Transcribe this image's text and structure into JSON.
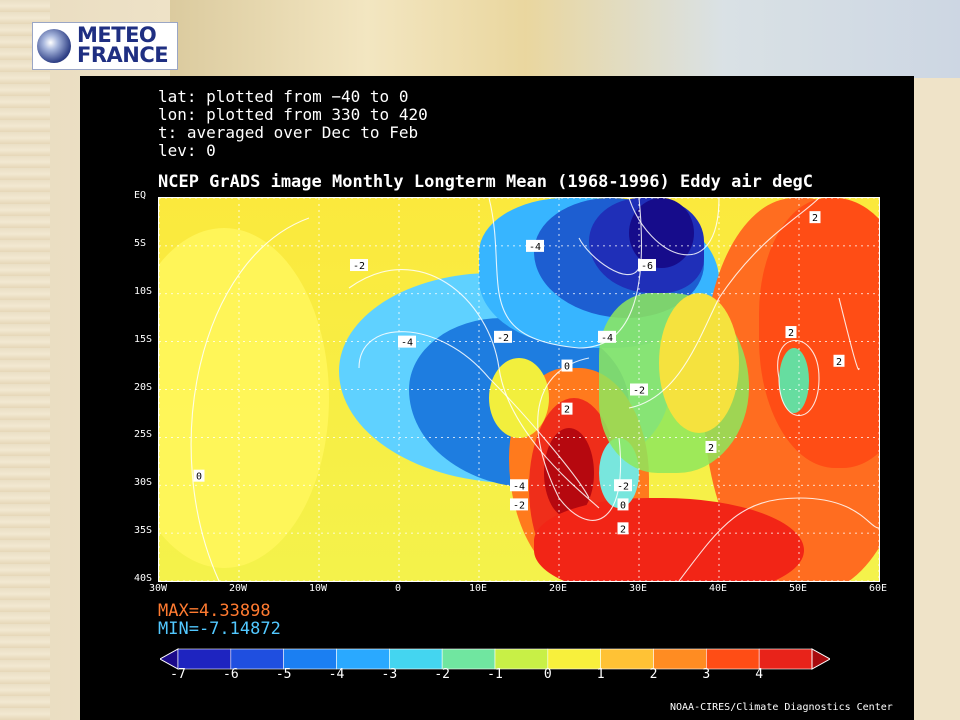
{
  "logo": {
    "line1": "METEO",
    "line2": "FRANCE"
  },
  "panel_meta": {
    "lat": "lat: plotted from −40 to 0",
    "lon": "lon: plotted from 330 to 420",
    "t": "t: averaged over Dec to Feb",
    "lev": "lev: 0"
  },
  "chart_data": {
    "type": "heatmap",
    "title": "NCEP GrADS image Monthly Longterm Mean (1968-1996) Eddy air degC",
    "x_ticks": [
      "30W",
      "20W",
      "10W",
      "0",
      "10E",
      "20E",
      "30E",
      "40E",
      "50E",
      "60E"
    ],
    "y_ticks": [
      "EQ",
      "5S",
      "10S",
      "15S",
      "20S",
      "25S",
      "30S",
      "35S",
      "40S"
    ],
    "contour_labels": [
      {
        "text": "-2",
        "lon": -5,
        "lat": -7
      },
      {
        "text": "-4",
        "lon": 1,
        "lat": -15
      },
      {
        "text": "-2",
        "lon": 13,
        "lat": -14.5
      },
      {
        "text": "-4",
        "lon": 17,
        "lat": -5
      },
      {
        "text": "-6",
        "lon": 31,
        "lat": -7
      },
      {
        "text": "-4",
        "lon": 26,
        "lat": -14.5
      },
      {
        "text": "0",
        "lon": 21,
        "lat": -17.5
      },
      {
        "text": "-2",
        "lon": 30,
        "lat": -20
      },
      {
        "text": "2",
        "lon": 21,
        "lat": -22
      },
      {
        "text": "-4",
        "lon": 15,
        "lat": -30
      },
      {
        "text": "-2",
        "lon": 15,
        "lat": -32
      },
      {
        "text": "-2",
        "lon": 28,
        "lat": -30
      },
      {
        "text": "0",
        "lon": 28,
        "lat": -32
      },
      {
        "text": "2",
        "lon": 28,
        "lat": -34.5
      },
      {
        "text": "2",
        "lon": 39,
        "lat": -26
      },
      {
        "text": "2",
        "lon": 49,
        "lat": -14
      },
      {
        "text": "2",
        "lon": 52,
        "lat": -2
      },
      {
        "text": "2",
        "lon": 55,
        "lat": -17
      },
      {
        "text": "0",
        "lon": -25,
        "lat": -29
      }
    ],
    "max_label": "MAX=4.33898",
    "min_label": "MIN=-7.14872",
    "colorbar_ticks": [
      "-7",
      "-6",
      "-5",
      "-4",
      "-3",
      "-2",
      "-1",
      "0",
      "1",
      "2",
      "3",
      "4"
    ],
    "colorbar_colors": [
      "#1b0a8a",
      "#1e24c0",
      "#1f4fe0",
      "#1b7ff2",
      "#2aa9ff",
      "#44d5f0",
      "#70e6a0",
      "#c8f046",
      "#f8f03c",
      "#ffc235",
      "#ff8c22",
      "#ff4d15",
      "#e8231a",
      "#a80b0e"
    ]
  },
  "credit": "NOAA-CIRES/Climate Diagnostics Center"
}
